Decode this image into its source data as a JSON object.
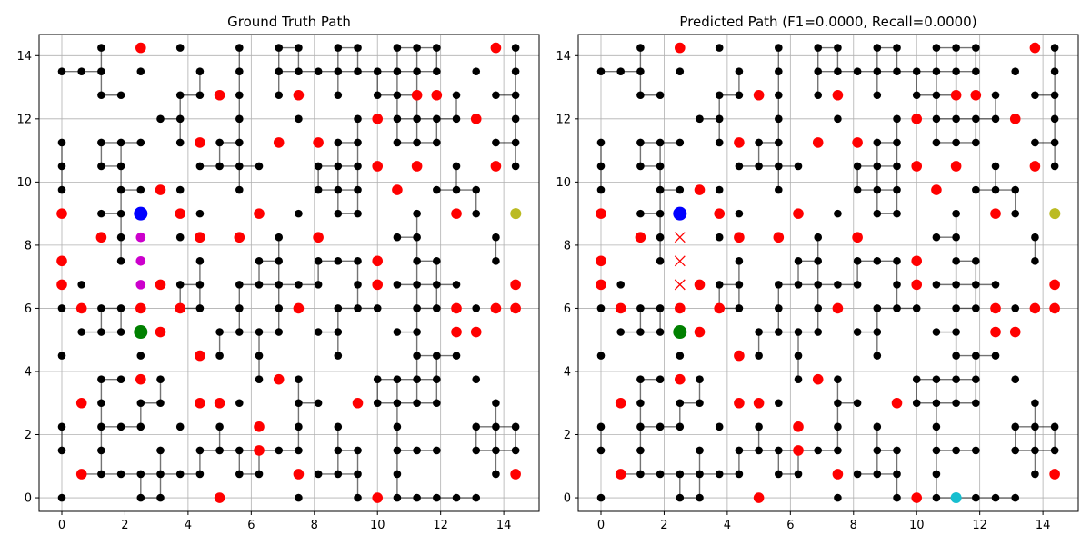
{
  "chart_data": [
    {
      "type": "scatter",
      "title": "Ground Truth Path",
      "xlim": [
        -0.72,
        15.12
      ],
      "ylim": [
        -0.43,
        14.67
      ],
      "xticks": [
        "0",
        "2",
        "4",
        "6",
        "8",
        "10",
        "12",
        "14"
      ],
      "yticks": [
        "0",
        "2",
        "4",
        "6",
        "8",
        "10",
        "12",
        "14"
      ],
      "grid": true,
      "path": {
        "color": "#c0c",
        "points": [
          [
            2.5,
            8.25
          ],
          [
            2.5,
            7.5
          ],
          [
            2.5,
            6.75
          ]
        ]
      },
      "start": {
        "x": 2.5,
        "y": 9.0,
        "color": "#0000ff"
      },
      "goal": {
        "x": 2.5,
        "y": 5.25,
        "color": "#008000"
      },
      "marker": {
        "x": 14.38,
        "y": 9.0,
        "color": "#bbbb22"
      }
    },
    {
      "type": "scatter",
      "title": "Predicted Path (F1=0.0000, Recall=0.0000)",
      "xlim": [
        -0.72,
        15.12
      ],
      "ylim": [
        -0.43,
        14.67
      ],
      "xticks": [
        "0",
        "2",
        "4",
        "6",
        "8",
        "10",
        "12",
        "14"
      ],
      "yticks": [
        "0",
        "2",
        "4",
        "6",
        "8",
        "10",
        "12",
        "14"
      ],
      "grid": true,
      "missed": {
        "color": "#ff0000",
        "points": [
          [
            2.5,
            8.25
          ],
          [
            2.5,
            7.5
          ],
          [
            2.5,
            6.75
          ]
        ]
      },
      "start": {
        "x": 2.5,
        "y": 9.0,
        "color": "#0000ff"
      },
      "goal": {
        "x": 2.5,
        "y": 5.25,
        "color": "#008000"
      },
      "marker": {
        "x": 14.38,
        "y": 9.0,
        "color": "#bbbb22"
      },
      "predicted_end": {
        "x": 11.25,
        "y": 0.0,
        "color": "#17becf"
      }
    }
  ],
  "graph": {
    "x_step": 0.625,
    "y_step": 0.75,
    "node_color": "#000000",
    "obstacle_color": "#ff0000",
    "nodes": [
      [
        0,
        0
      ],
      [
        2.5,
        0
      ],
      [
        3.125,
        0
      ],
      [
        7.5,
        0
      ],
      [
        9.375,
        0
      ],
      [
        10.625,
        0
      ],
      [
        11.25,
        0
      ],
      [
        11.875,
        0
      ],
      [
        12.5,
        0
      ],
      [
        13.125,
        0
      ],
      [
        0.625,
        0.75
      ],
      [
        1.25,
        0.75
      ],
      [
        1.875,
        0.75
      ],
      [
        2.5,
        0.75
      ],
      [
        3.125,
        0.75
      ],
      [
        3.75,
        0.75
      ],
      [
        4.375,
        0.75
      ],
      [
        5.625,
        0.75
      ],
      [
        6.25,
        0.75
      ],
      [
        8.125,
        0.75
      ],
      [
        8.75,
        0.75
      ],
      [
        9.375,
        0.75
      ],
      [
        10.625,
        0.75
      ],
      [
        13.75,
        0.75
      ],
      [
        0,
        1.5
      ],
      [
        1.25,
        1.5
      ],
      [
        3.125,
        1.5
      ],
      [
        4.375,
        1.5
      ],
      [
        5,
        1.5
      ],
      [
        5.625,
        1.5
      ],
      [
        6.25,
        1.5
      ],
      [
        6.875,
        1.5
      ],
      [
        7.5,
        1.5
      ],
      [
        8.75,
        1.5
      ],
      [
        9.375,
        1.5
      ],
      [
        10.625,
        1.5
      ],
      [
        11.25,
        1.5
      ],
      [
        11.875,
        1.5
      ],
      [
        13.125,
        1.5
      ],
      [
        13.75,
        1.5
      ],
      [
        14.375,
        1.5
      ],
      [
        0,
        2.25
      ],
      [
        1.25,
        2.25
      ],
      [
        1.875,
        2.25
      ],
      [
        2.5,
        2.25
      ],
      [
        3.75,
        2.25
      ],
      [
        5,
        2.25
      ],
      [
        7.5,
        2.25
      ],
      [
        8.75,
        2.25
      ],
      [
        10.625,
        2.25
      ],
      [
        13.125,
        2.25
      ],
      [
        13.75,
        2.25
      ],
      [
        14.375,
        2.25
      ],
      [
        1.25,
        3
      ],
      [
        2.5,
        3
      ],
      [
        3.125,
        3
      ],
      [
        5.625,
        3
      ],
      [
        7.5,
        3
      ],
      [
        8.125,
        3
      ],
      [
        10,
        3
      ],
      [
        10.625,
        3
      ],
      [
        11.25,
        3
      ],
      [
        11.875,
        3
      ],
      [
        13.75,
        3
      ],
      [
        1.25,
        3.75
      ],
      [
        1.875,
        3.75
      ],
      [
        3.125,
        3.75
      ],
      [
        6.25,
        3.75
      ],
      [
        7.5,
        3.75
      ],
      [
        10,
        3.75
      ],
      [
        10.625,
        3.75
      ],
      [
        11.25,
        3.75
      ],
      [
        11.875,
        3.75
      ],
      [
        13.125,
        3.75
      ],
      [
        0,
        4.5
      ],
      [
        2.5,
        4.5
      ],
      [
        5,
        4.5
      ],
      [
        6.25,
        4.5
      ],
      [
        8.75,
        4.5
      ],
      [
        11.25,
        4.5
      ],
      [
        11.875,
        4.5
      ],
      [
        12.5,
        4.5
      ],
      [
        0.625,
        5.25
      ],
      [
        1.25,
        5.25
      ],
      [
        1.875,
        5.25
      ],
      [
        5,
        5.25
      ],
      [
        5.625,
        5.25
      ],
      [
        6.25,
        5.25
      ],
      [
        6.875,
        5.25
      ],
      [
        8.125,
        5.25
      ],
      [
        8.75,
        5.25
      ],
      [
        10.625,
        5.25
      ],
      [
        11.25,
        5.25
      ],
      [
        0,
        6
      ],
      [
        1.25,
        6
      ],
      [
        1.875,
        6
      ],
      [
        3.75,
        6
      ],
      [
        4.375,
        6
      ],
      [
        5.625,
        6
      ],
      [
        6.875,
        6
      ],
      [
        8.75,
        6
      ],
      [
        9.375,
        6
      ],
      [
        10,
        6
      ],
      [
        11.25,
        6
      ],
      [
        11.875,
        6
      ],
      [
        13.125,
        6
      ],
      [
        0.625,
        6.75
      ],
      [
        3.75,
        6.75
      ],
      [
        4.375,
        6.75
      ],
      [
        5.625,
        6.75
      ],
      [
        6.25,
        6.75
      ],
      [
        6.875,
        6.75
      ],
      [
        7.5,
        6.75
      ],
      [
        8.125,
        6.75
      ],
      [
        9.375,
        6.75
      ],
      [
        10.625,
        6.75
      ],
      [
        11.25,
        6.75
      ],
      [
        11.875,
        6.75
      ],
      [
        12.5,
        6.75
      ],
      [
        1.875,
        7.5
      ],
      [
        4.375,
        7.5
      ],
      [
        6.25,
        7.5
      ],
      [
        6.875,
        7.5
      ],
      [
        8.125,
        7.5
      ],
      [
        8.75,
        7.5
      ],
      [
        9.375,
        7.5
      ],
      [
        11.25,
        7.5
      ],
      [
        11.875,
        7.5
      ],
      [
        13.75,
        7.5
      ],
      [
        1.875,
        8.25
      ],
      [
        3.75,
        8.25
      ],
      [
        6.875,
        8.25
      ],
      [
        10.625,
        8.25
      ],
      [
        11.25,
        8.25
      ],
      [
        13.75,
        8.25
      ],
      [
        1.25,
        9
      ],
      [
        1.875,
        9
      ],
      [
        4.375,
        9
      ],
      [
        7.5,
        9
      ],
      [
        8.75,
        9
      ],
      [
        9.375,
        9
      ],
      [
        11.25,
        9
      ],
      [
        13.125,
        9
      ],
      [
        0,
        9.75
      ],
      [
        1.875,
        9.75
      ],
      [
        2.5,
        9.75
      ],
      [
        3.75,
        9.75
      ],
      [
        5.625,
        9.75
      ],
      [
        8.125,
        9.75
      ],
      [
        8.75,
        9.75
      ],
      [
        9.375,
        9.75
      ],
      [
        11.875,
        9.75
      ],
      [
        12.5,
        9.75
      ],
      [
        13.125,
        9.75
      ],
      [
        0,
        10.5
      ],
      [
        1.25,
        10.5
      ],
      [
        1.875,
        10.5
      ],
      [
        4.375,
        10.5
      ],
      [
        5,
        10.5
      ],
      [
        5.625,
        10.5
      ],
      [
        6.25,
        10.5
      ],
      [
        8.125,
        10.5
      ],
      [
        8.75,
        10.5
      ],
      [
        9.375,
        10.5
      ],
      [
        12.5,
        10.5
      ],
      [
        14.375,
        10.5
      ],
      [
        0,
        11.25
      ],
      [
        1.25,
        11.25
      ],
      [
        1.875,
        11.25
      ],
      [
        2.5,
        11.25
      ],
      [
        3.75,
        11.25
      ],
      [
        5,
        11.25
      ],
      [
        5.625,
        11.25
      ],
      [
        8.75,
        11.25
      ],
      [
        9.375,
        11.25
      ],
      [
        10.625,
        11.25
      ],
      [
        11.25,
        11.25
      ],
      [
        11.875,
        11.25
      ],
      [
        13.75,
        11.25
      ],
      [
        14.375,
        11.25
      ],
      [
        3.125,
        12
      ],
      [
        3.75,
        12
      ],
      [
        5.625,
        12
      ],
      [
        7.5,
        12
      ],
      [
        9.375,
        12
      ],
      [
        10.625,
        12
      ],
      [
        11.25,
        12
      ],
      [
        11.875,
        12
      ],
      [
        12.5,
        12
      ],
      [
        14.375,
        12
      ],
      [
        1.25,
        12.75
      ],
      [
        1.875,
        12.75
      ],
      [
        3.75,
        12.75
      ],
      [
        4.375,
        12.75
      ],
      [
        5.625,
        12.75
      ],
      [
        6.875,
        12.75
      ],
      [
        8.75,
        12.75
      ],
      [
        10,
        12.75
      ],
      [
        10.625,
        12.75
      ],
      [
        11.25,
        12.75
      ],
      [
        12.5,
        12.75
      ],
      [
        13.75,
        12.75
      ],
      [
        14.375,
        12.75
      ],
      [
        0,
        13.5
      ],
      [
        0.625,
        13.5
      ],
      [
        1.25,
        13.5
      ],
      [
        2.5,
        13.5
      ],
      [
        4.375,
        13.5
      ],
      [
        5.625,
        13.5
      ],
      [
        6.875,
        13.5
      ],
      [
        7.5,
        13.5
      ],
      [
        8.125,
        13.5
      ],
      [
        8.75,
        13.5
      ],
      [
        9.375,
        13.5
      ],
      [
        10,
        13.5
      ],
      [
        10.625,
        13.5
      ],
      [
        11.25,
        13.5
      ],
      [
        11.875,
        13.5
      ],
      [
        13.125,
        13.5
      ],
      [
        14.375,
        13.5
      ],
      [
        1.25,
        14.25
      ],
      [
        3.75,
        14.25
      ],
      [
        5.625,
        14.25
      ],
      [
        6.875,
        14.25
      ],
      [
        7.5,
        14.25
      ],
      [
        8.75,
        14.25
      ],
      [
        9.375,
        14.25
      ],
      [
        10.625,
        14.25
      ],
      [
        11.25,
        14.25
      ],
      [
        11.875,
        14.25
      ],
      [
        14.375,
        14.25
      ]
    ],
    "obstacles": [
      [
        5,
        0
      ],
      [
        10,
        0
      ],
      [
        0.625,
        0.75
      ],
      [
        7.5,
        0.75
      ],
      [
        14.375,
        0.75
      ],
      [
        6.25,
        1.5
      ],
      [
        6.25,
        2.25
      ],
      [
        0.625,
        3
      ],
      [
        4.375,
        3
      ],
      [
        5,
        3
      ],
      [
        9.375,
        3
      ],
      [
        2.5,
        3.75
      ],
      [
        6.875,
        3.75
      ],
      [
        4.375,
        4.5
      ],
      [
        3.125,
        5.25
      ],
      [
        12.5,
        5.25
      ],
      [
        13.125,
        5.25
      ],
      [
        0.625,
        6
      ],
      [
        2.5,
        6
      ],
      [
        3.75,
        6
      ],
      [
        7.5,
        6
      ],
      [
        12.5,
        6
      ],
      [
        13.75,
        6
      ],
      [
        14.375,
        6
      ],
      [
        0,
        6.75
      ],
      [
        3.125,
        6.75
      ],
      [
        10,
        6.75
      ],
      [
        14.375,
        6.75
      ],
      [
        0,
        7.5
      ],
      [
        10,
        7.5
      ],
      [
        1.25,
        8.25
      ],
      [
        4.375,
        8.25
      ],
      [
        5.625,
        8.25
      ],
      [
        8.125,
        8.25
      ],
      [
        0,
        9
      ],
      [
        3.75,
        9
      ],
      [
        6.25,
        9
      ],
      [
        12.5,
        9
      ],
      [
        3.125,
        9.75
      ],
      [
        10.625,
        9.75
      ],
      [
        10,
        10.5
      ],
      [
        11.25,
        10.5
      ],
      [
        13.75,
        10.5
      ],
      [
        4.375,
        11.25
      ],
      [
        6.875,
        11.25
      ],
      [
        8.125,
        11.25
      ],
      [
        10,
        12
      ],
      [
        13.125,
        12
      ],
      [
        5,
        12.75
      ],
      [
        7.5,
        12.75
      ],
      [
        11.25,
        12.75
      ],
      [
        11.875,
        12.75
      ],
      [
        2.5,
        14.25
      ],
      [
        13.75,
        14.25
      ]
    ]
  }
}
